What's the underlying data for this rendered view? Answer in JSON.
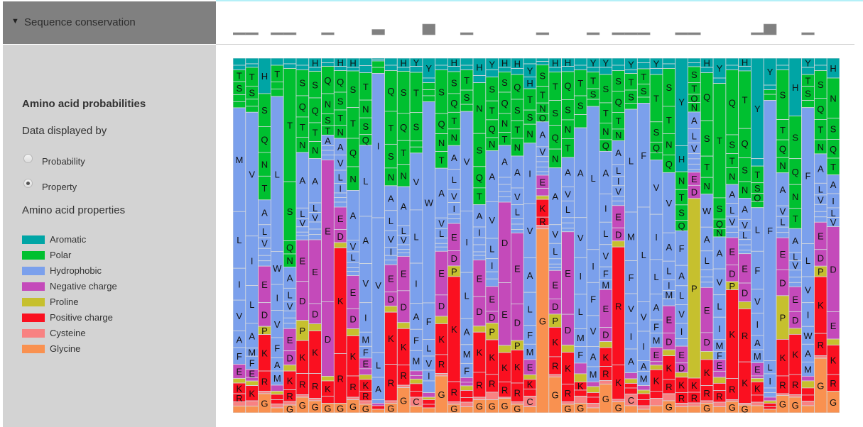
{
  "panel": {
    "header_title": "Sequence conservation",
    "section_title": "Amino acid probabilities",
    "data_displayed_by": "Data displayed by",
    "options": [
      {
        "label": "Probability",
        "selected": false
      },
      {
        "label": "Property",
        "selected": true
      }
    ],
    "properties_title": "Amino acid properties",
    "legend": [
      {
        "label": "Aromatic",
        "color": "#00A5A5"
      },
      {
        "label": "Polar",
        "color": "#00C030"
      },
      {
        "label": "Hydrophobic",
        "color": "#7BA0EC"
      },
      {
        "label": "Negative charge",
        "color": "#C44ABA"
      },
      {
        "label": "Proline",
        "color": "#C6C02E"
      },
      {
        "label": "Positive charge",
        "color": "#FA1020"
      },
      {
        "label": "Cysteine",
        "color": "#F88282"
      },
      {
        "label": "Glycine",
        "color": "#F99150"
      }
    ]
  },
  "chart_data": {
    "type": "sequence-logo",
    "display_mode": "Property",
    "property_groups": {
      "Aromatic": "HY",
      "Polar": "STNQ",
      "Hydrophobic": "AVLIMFW",
      "Negative charge": "DE",
      "Proline": "P",
      "Positive charge": "KR",
      "Cysteine": "C",
      "Glycine": "G"
    },
    "conservation": [
      0.2,
      0.2,
      0,
      0.2,
      0.2,
      0,
      0,
      0.2,
      0,
      0,
      0,
      0.5,
      0,
      0,
      0,
      1.0,
      0,
      0,
      0.2,
      0,
      0,
      0,
      0,
      0,
      0.2,
      0,
      0,
      0,
      0.2,
      0,
      0.2,
      0.2,
      0.2,
      0,
      0,
      0.2,
      0.2,
      0,
      0,
      0,
      0,
      0.2,
      1.0,
      0,
      0,
      0.2,
      0,
      0
    ],
    "columns_note": "each column: residues top-to-bottom with probability (%); '-' prefix = label not drawn",
    "columns": [
      "Y2 H1.3 T3.3 S3.7 N2 Q1.7 M29.3 L16 I9 V8.7 A4.7 F4.7 E4 P1.3 K3 R2.3 C1.2 G1.9",
      "Y1.6 H1 T5.3 S3.7 N2 Q1.7 V35 I14 L10.7 A7 M2.3 F3.7 E2.3 D1 P1.3 K4.3 C1.5 G1.9",
      "H10 S9.3 Q7.3 N6.7 T6.7 A7 L3.7 V3 I2 F1.5 M1.5 E10.3 D6.7 P2.3 K10.3 R5.7 C0.7 G5.4",
      "Y2 T4.7 N2 Q2.1 L43.7 W9.3 I7.3 V7.7 F5.7 A3.7 M4 E1.7 P0.9 K1.5 R1.2 C1.1 G1.4",
      "Y1.6 H1.3 T32 S16.7 Q3.7 N3.7 A6 L3.7 V2.7 I2 F1.5 M1.5 E6.3 D4 P1.7 K5.3 R3.3 C1 G2.2",
      "Y2 H1.3 S7.3 Q6 T5.7 N4.3 A15.7 L3 V2.3 I1.5 F1 M1.2 E11.7 D11 P5.7 K9.3 R6 C0.7 G4.4",
      "H2.6 Y1.1 S7.5 Q7 T5.3 N4.8 A12.5 L2.7 V2.7 I2 F1.5 M1.5 E18 D5.7 P2 K12 R7 C0.7 G3.4",
      "Y1.3 H1 Q7.7 N5.7 S3.3 T2.7 A3 L1.3 V1.3 I1.4 E40 D21 P1.3 K4.3 R2 G2.7",
      "H2.3 Y1.2 Q6.1 S5 T4.3 N3.7 A4.7 V4.3 L3.7 I2.7 M1.3 F1.3 W1.4 E6.3 D3.7 P1.5 K29.8 R14 G2.7",
      "H2.6 Y1 S10.3 T8.7 Q8 N6.7 A14 V3.3 L3 I1.5 F1 M1.2 E9.3 D5.7 P2 K11.3 R6 C0.7 G3.7",
      "Y2.1 H2 T7.7 N5 S4.7 Q3 L20 A13.3 V11 I8.3 M4 F3.3 E3 D1.7 P1.3 K3.3 R2.7 C1 G2.4",
      "Y0.4 H0.4 N1.8 Q1.7 I40.7 V38 L7 A6.3 M1 E0.7 K1 G1",
      "Y2 H1.5 Q11.5 T9.3 S6.7 N5 A7 L5.7 V4.7 I2.3 F1.3 M1.3 E7.7 D4 P1.7 K14.7 R10.3 C0.7 G2.7",
      "H2.6 Y1.1 S11.9 Q7.7 T6.7 N6.3 A11 L2.7 V2.7 I1.3 F1 M1 E9.7 D9 P1.7 K10.3 R5.7 C0.7 G7.1",
      "Y2.3 H1.7 T11.3 S8 N1.7 Q1.7 V16 L15 I11.3 A7.3 F6 M5.7 E1.3 D1 P1.3 K2.1 R1.7 C2.5 G1.9",
      "Y5.6 H1.3 N2 Q1.7 S1.7 W56.7 F10.3 L4.7 V4 I3 -M3.3 E1.3 P0.7 K1.3 R1 G1.4",
      "Y2 H1.3 S12.3 Q5.7 N5 T4.7 A14 V3 L2.7 I1.5 F1 M1.2 E12.3 D6 P2.1 K8.7 R5.3 C0.7 G10.4",
      "H2.3 Y1.5 S6.2 Q5.3 T4.7 N4.7 A6.7 L5.7 V3.7 I3.3 F1.3 M1.3 E7.7 D4.3 P3 K29.7 R5.7 C0.7 G2.4",
      "Y2 H1.3 T5.7 S4 N2 V28 I17.3 L13 A7.3 M5.3 F4 E1.3 D1 P1.3 K2 R1.3 C1.3 G1.7",
      "H4.9 Y2 N14.3 S9.3 Q6 T4.7 A6.3 I3 L2 V2 F1 M1.3 E10.3 D8.3 P1.7 K11.3 R7 C0.7 G3.7",
      "Y3.3 H2 S6.7 T5.3 Q5 N3.7 A14.3 V10.3 L5.7 I3.7 M2 F2.1 E7 D3.3 P4.7 K9.7 R5 C2.1 G3.7",
      "H2.6 Y1.3 S5.7 Q6 N5.3 T3.7 A9 L2 V2 I1.5 F1.5 D22.7 E17.7 P2 K8.3 R4.3 C0.3 G4.1",
      "H2.9 Y1.7 Q7 S6 T5 N5 A9 V4.7 L4 I1.5 F1.5 M1 E20 D10.3 P2.7 K9.3 R5.3 C0.7 G2.4",
      "H1.6 Y3.7 H3.3 T6 S4 N5.3 I17 V15.3 A9.7 L9.3 F5.3 M4.3 E4.3 P1.3 K2.7 R2 C3 G1.7",
      "Y0.9 H1 S6 T4.7 N3 Q2.3 A7 V2.7 L1.5 I1.5 F1.3 M1 E3.7 D2.1 P1 K5 R2.3 C1 G51.7",
      "H2.6 Y1.3 T8 S7 Q6.7 N5.3 A16 V5.3 L4.3 I1.5 F1 M0.8 E8 D4.3 P3.7 K8.3 R5 C0.7 G10.1",
      "H2.3 Y1.5 Q7.9 S5.7 N5.3 T5.3 A8.3 V4 L4.7 I1.5 F1.5 M1 E23.3 D8.7 P2 K9 R5 C0.7 G2.4",
      "Y2 H1.3 T7.3 S5.3 -N3.7 A25.3 V11.3 I10.3 L9.7 M5 F4.7 -E3 -P2.3 K2.3 R1.7 C2 G2.7",
      "Y2.6 H1.3 T4.7 S3 N2 L40.3 I9.3 F9.3 V8.7 A5.7 M4.3 E1.3 P1.7 K1.3 R1.7 C1.3 G1.4",
      "Y2.6 H2 S8 T5.7 N4.7 Q3.3 A12 I8 L6.3 V6.3 F3.7 M2.7 E10.7 D4 P1.7 K5.3 R4 C1 G8.1",
      "Y2 H1.5 S5.8 Q6 T4.7 N3.3 A6.7 L3.3 I2.7 V3 F1.3 M1.3 E6.3 D3.7 P1.7 R33.3 K9.7 C0.7 G3.1",
      "Y3.3 H1 T4.7 S3.7 N1.7 L29 M13.7 F9.3 V8.3 I7.3 A6.7 E1.7 P1.3 K1.3 R1.7 C3.3 G2",
      "Y1.3 H1.7 T4.3 S3.7 N1.7 F29.3 L26.7 V8.3 I8.3 A3 M4 E1.3 P1 K1.7 R1.7 C1 G1",
      "Y2.9 H1.7 T13.3 S5.7 Q3 N2 V15.3 I12.7 L9.7 A7.3 F3.7 M4 E4 D1 P1.3 K6 R2 C2.1 G2",
      "Y1.6 H1.3 S10.7 T7.7 N6 Q5 V17 A8 L5.3 I3 M2.3 F2 E7.7 D4.7 P1.7 K6.7 R4 C2 G3.4",
      "Y24.6 H7.3 N5 T4.3 S4.3 Q3 F9.7 A5.7 L5.3 V5.3 I4.3 M2.1 E4.7 D2.7 P1.3 K4.3 R3 C1 G1.7",
      "Y1.3 H1.1 S4.5 T3.3 Q2.3 N2.7 A4.7 L4 V3 I1.5 F1.5 M1.5 W0.8 E3.7 D3.7 P50.7 K4 R3 C0.9 G1.9",
      "H2.6 Y1.5 Q13.5 S10 T6 N4.7 W9.3 A6.7 L5.3 V2 I1.5 F1.5 E12.7 D5.3 -P2.3 K7.3 R4.3 C0.7 G2.7",
      "Y5.6 H1.5 T32.2 S6 Q2.7 N2.3 A9 V7.3 L6.3 I6.3 M3.3 F2.3 E3.3 D1.7 P1.7 K2 R3.3 C1.3 G1.7",
      "Y2 H1.3 Q18.3 S5.3 T4 N4.7 A5.3 L3.7 V3 I1.5 F1.5 E7.7 D4.7 P2.3 K25 R6 C0.5 G3.2",
      "H2.3 Y1.3 T16.3 Q8.3 S6.7 N4.7 A6 V3 L2.7 I1.5 F1.5 M1 E8.3 D5.3 -P2 R15 K11.7 C0.5 G2.2",
      "Y28.3 H2.1 T4.7 S3 Q2.3 N1.7 L12.3 F10.7 V6.7 I6.3 A4 M3.7 E3.7 D0.7 P1 K3.7 R2 C1 G2",
      "Y7.6 H1.3 N1.3 Q1.7 F73.3 L3.7 I4 A1.3 M1.3 E1 P0.7 K1 R0.7 G1",
      "Y2 H1.3 S14 T5.7 Q5 N4.3 A9.3 V3 L3 I1.5 F1.5 E9 D7.3 P12.3 K10.3 R5 C0.5 G4.9",
      "H16.3 S12 Q7.3 N6.7 T5.7 A6.7 L2.3 V2.7 I2 F1.5 M1.2 E7 D4.7 P1.7 K11.3 R5.7 C0.7 G4.4",
      "Y2.6 H2 T3.3 S4 N2 F38.3 L9.3 V7.3 I6.7 W5 A5 M4 E1.3 P2 K2 R1.7 C1.3 G2",
      "Y2 H1.5 S7.8 Q6 T5.7 N4 A8.3 L3.3 V2.7 I2 F1.5 M1.5 E7.7 D4.7 P3 K16 R6.3 C0.7 G15.4",
      "H5.6 N11.3 S6 Q5.3 T4.7 A5.3 I4 L2.7 V2.6 D24 E7.7 P1.7 K8.3 R4.7 G6.1"
    ]
  }
}
